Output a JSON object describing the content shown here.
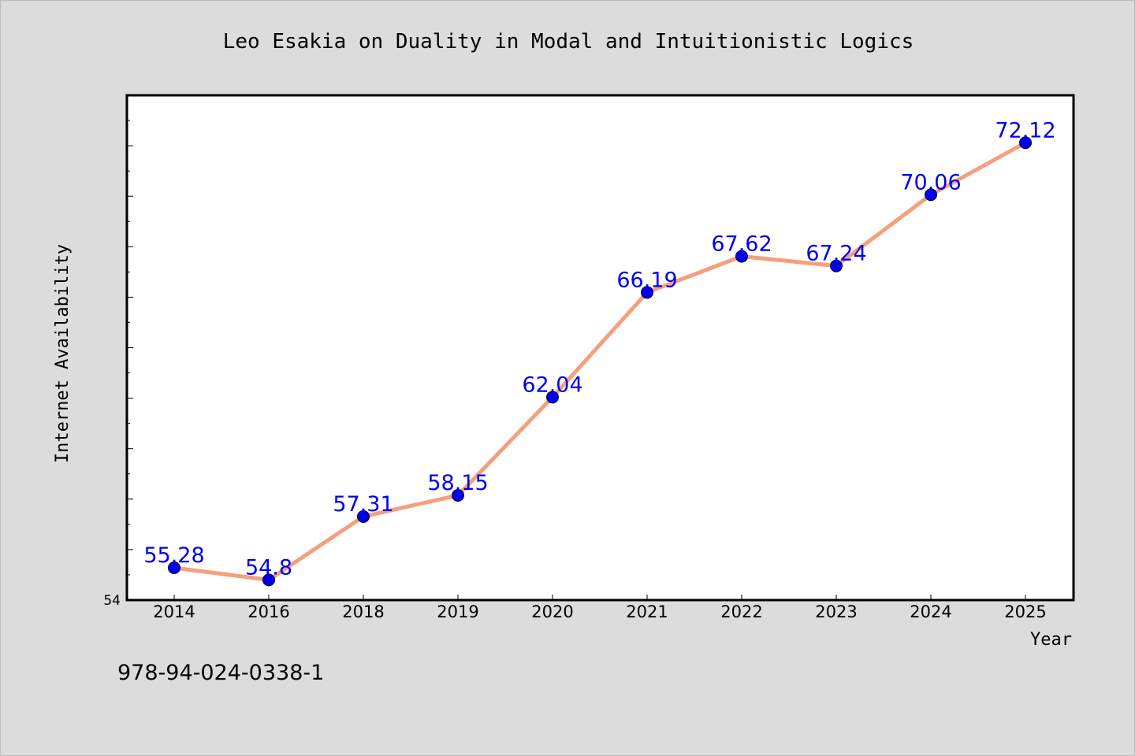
{
  "chart_data": {
    "type": "line",
    "title": "Leo Esakia on Duality in Modal and Intuitionistic Logics",
    "xlabel": "Year",
    "ylabel": "Internet Availability",
    "categories": [
      "2014",
      "2016",
      "2018",
      "2019",
      "2020",
      "2021",
      "2022",
      "2023",
      "2024",
      "2025"
    ],
    "series": [
      {
        "values": [
          55.28,
          54.8,
          57.31,
          58.15,
          62.04,
          66.19,
          67.62,
          67.24,
          70.06,
          72.12
        ]
      }
    ],
    "data_labels": [
      "55.28",
      "54.8",
      "57.31",
      "58.15",
      "62.04",
      "66.19",
      "67.62",
      "67.24",
      "70.06",
      "72.12"
    ],
    "y_tick_labels": [
      "54"
    ],
    "ylim": [
      54,
      74
    ],
    "grid": false,
    "legend": "none"
  },
  "footer_text": "978-94-024-0338-1",
  "colors": {
    "background": "#dcdcdc",
    "plot_background": "#ffffff",
    "line": "#f4a07e",
    "marker": "#0000ee",
    "data_label": "#0000ee",
    "axis": "#000000"
  }
}
